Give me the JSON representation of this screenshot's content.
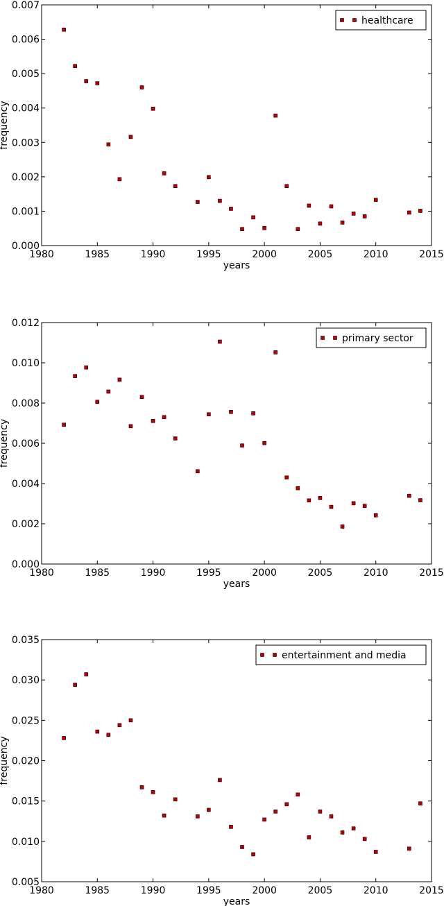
{
  "chart_data": [
    {
      "type": "scatter",
      "xlabel": "years",
      "ylabel": "frequency",
      "xlim": [
        1980,
        2015
      ],
      "ylim": [
        0,
        0.007
      ],
      "x_ticks": [
        "1980",
        "1985",
        "1990",
        "1995",
        "2000",
        "2005",
        "2010",
        "2015"
      ],
      "y_ticks": [
        "0.000",
        "0.001",
        "0.002",
        "0.003",
        "0.004",
        "0.005",
        "0.006",
        "0.007"
      ],
      "legend_position": "top-right",
      "marker_color": "#c00000",
      "series": [
        {
          "name": "healthcare",
          "x": [
            1982,
            1983,
            1984,
            1985,
            1986,
            1987,
            1988,
            1989,
            1990,
            1991,
            1992,
            1994,
            1995,
            1996,
            1997,
            1998,
            1999,
            2000,
            2001,
            2002,
            2003,
            2004,
            2005,
            2006,
            2007,
            2008,
            2009,
            2010,
            2013,
            2014
          ],
          "y": [
            0.00628,
            0.00522,
            0.00478,
            0.00472,
            0.00294,
            0.00193,
            0.00316,
            0.0046,
            0.00398,
            0.0021,
            0.00173,
            0.00127,
            0.00199,
            0.0013,
            0.00107,
            0.00048,
            0.00082,
            0.00051,
            0.00378,
            0.00173,
            0.00048,
            0.00116,
            0.00064,
            0.00114,
            0.00067,
            0.00093,
            0.00085,
            0.00133,
            0.00096,
            0.00101
          ]
        }
      ]
    },
    {
      "type": "scatter",
      "xlabel": "years",
      "ylabel": "frequency",
      "xlim": [
        1980,
        2015
      ],
      "ylim": [
        0,
        0.012
      ],
      "x_ticks": [
        "1980",
        "1985",
        "1990",
        "1995",
        "2000",
        "2005",
        "2010",
        "2015"
      ],
      "y_ticks": [
        "0.000",
        "0.002",
        "0.004",
        "0.006",
        "0.008",
        "0.010",
        "0.012"
      ],
      "legend_position": "top-right",
      "marker_color": "#c00000",
      "series": [
        {
          "name": "primary sector",
          "x": [
            1982,
            1983,
            1984,
            1985,
            1986,
            1987,
            1988,
            1989,
            1990,
            1991,
            1992,
            1994,
            1995,
            1996,
            1997,
            1998,
            1999,
            2000,
            2001,
            2002,
            2003,
            2004,
            2005,
            2006,
            2007,
            2008,
            2009,
            2010,
            2013,
            2014
          ],
          "y": [
            0.00692,
            0.00934,
            0.00977,
            0.00806,
            0.00857,
            0.00916,
            0.00685,
            0.0083,
            0.00711,
            0.0073,
            0.00624,
            0.00461,
            0.00744,
            0.01105,
            0.00756,
            0.00589,
            0.00749,
            0.00601,
            0.01052,
            0.0043,
            0.00377,
            0.00316,
            0.00328,
            0.00284,
            0.00186,
            0.00302,
            0.00289,
            0.00242,
            0.00339,
            0.00317
          ]
        }
      ]
    },
    {
      "type": "scatter",
      "xlabel": "years",
      "ylabel": "frequency",
      "xlim": [
        1980,
        2015
      ],
      "ylim": [
        0.005,
        0.035
      ],
      "x_ticks": [
        "1980",
        "1985",
        "1990",
        "1995",
        "2000",
        "2005",
        "2010",
        "2015"
      ],
      "y_ticks": [
        "0.005",
        "0.010",
        "0.015",
        "0.020",
        "0.025",
        "0.030",
        "0.035"
      ],
      "legend_position": "top-right",
      "marker_color": "#c00000",
      "series": [
        {
          "name": "entertainment and media",
          "x": [
            1982,
            1983,
            1984,
            1985,
            1986,
            1987,
            1988,
            1989,
            1990,
            1991,
            1992,
            1994,
            1995,
            1996,
            1997,
            1998,
            1999,
            2000,
            2001,
            2002,
            2003,
            2004,
            2005,
            2006,
            2007,
            2008,
            2009,
            2010,
            2013,
            2014
          ],
          "y": [
            0.0228,
            0.0294,
            0.0307,
            0.0236,
            0.0232,
            0.0244,
            0.025,
            0.0167,
            0.0161,
            0.0132,
            0.0152,
            0.0131,
            0.0139,
            0.0176,
            0.0118,
            0.0093,
            0.0084,
            0.0127,
            0.0137,
            0.0146,
            0.0158,
            0.0105,
            0.0137,
            0.0131,
            0.0111,
            0.0116,
            0.0103,
            0.0087,
            0.0091,
            0.0147
          ]
        }
      ]
    }
  ]
}
